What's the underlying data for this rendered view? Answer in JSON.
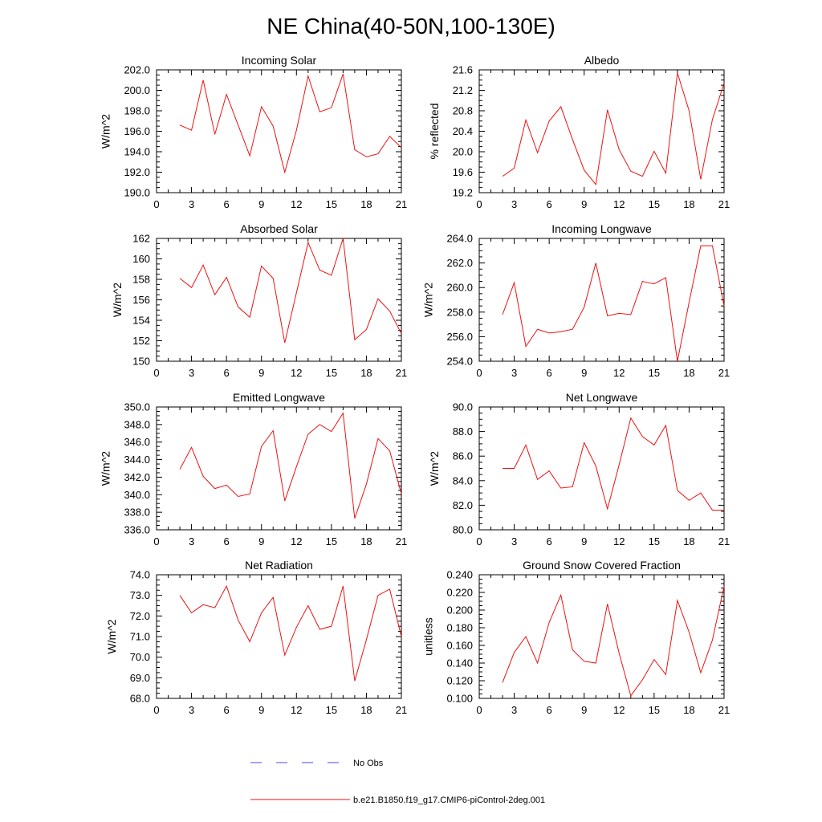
{
  "figure": {
    "title": "NE China(40-50N,100-130E)"
  },
  "legend": {
    "items": [
      {
        "label": "No Obs",
        "color": "#4a4adf",
        "dashed": true
      },
      {
        "label": "b.e21.B1850.f19_g17.CMIP6-piControl-2deg.001",
        "color": "#ee1111",
        "dashed": false
      }
    ]
  },
  "chart_data": [
    {
      "type": "line",
      "title": "Incoming Solar",
      "ylabel": "W/m^2",
      "xlim": [
        0,
        21
      ],
      "ylim": [
        190,
        202
      ],
      "xticks": [
        "0",
        "3",
        "6",
        "9",
        "12",
        "15",
        "18",
        "21"
      ],
      "yticks": [
        "190.0",
        "192.0",
        "194.0",
        "196.0",
        "198.0",
        "200.0",
        "202.0"
      ],
      "x": [
        2,
        3,
        4,
        5,
        6,
        7,
        8,
        9,
        10,
        11,
        12,
        13,
        14,
        15,
        16,
        17,
        18,
        19,
        20,
        21
      ],
      "series": [
        {
          "values": [
            196.6,
            196.1,
            201.0,
            195.7,
            199.6,
            196.6,
            193.6,
            198.4,
            196.5,
            192.0,
            196.1,
            201.4,
            197.9,
            198.3,
            201.6,
            194.2,
            193.5,
            193.8,
            195.5,
            194.4
          ]
        }
      ]
    },
    {
      "type": "line",
      "title": "Albedo",
      "ylabel": "% reflected",
      "xlim": [
        0,
        21
      ],
      "ylim": [
        19.2,
        21.6
      ],
      "xticks": [
        "0",
        "3",
        "6",
        "9",
        "12",
        "15",
        "18",
        "21"
      ],
      "yticks": [
        "19.2",
        "19.6",
        "20.0",
        "20.4",
        "20.8",
        "21.2",
        "21.6"
      ],
      "x": [
        2,
        3,
        4,
        5,
        6,
        7,
        8,
        9,
        10,
        11,
        12,
        13,
        14,
        15,
        16,
        17,
        18,
        19,
        20,
        21
      ],
      "series": [
        {
          "values": [
            19.52,
            19.68,
            20.62,
            19.98,
            20.6,
            20.88,
            20.24,
            19.64,
            19.36,
            20.82,
            20.04,
            19.62,
            19.52,
            20.01,
            19.58,
            21.54,
            20.8,
            19.46,
            20.63,
            21.34
          ]
        }
      ]
    },
    {
      "type": "line",
      "title": "Absorbed Solar",
      "ylabel": "W/m^2",
      "xlim": [
        0,
        21
      ],
      "ylim": [
        150,
        162
      ],
      "xticks": [
        "0",
        "3",
        "6",
        "9",
        "12",
        "15",
        "18",
        "21"
      ],
      "yticks": [
        "150",
        "152",
        "154",
        "156",
        "158",
        "160",
        "162"
      ],
      "x": [
        2,
        3,
        4,
        5,
        6,
        7,
        8,
        9,
        10,
        11,
        12,
        13,
        14,
        15,
        16,
        17,
        18,
        19,
        20,
        21
      ],
      "series": [
        {
          "values": [
            158.1,
            157.2,
            159.4,
            156.5,
            158.2,
            155.3,
            154.3,
            159.3,
            158.1,
            151.8,
            156.7,
            161.6,
            158.9,
            158.4,
            162.0,
            152.1,
            153.1,
            156.1,
            154.9,
            152.7
          ]
        }
      ]
    },
    {
      "type": "line",
      "title": "Incoming Longwave",
      "ylabel": "W/m^2",
      "xlim": [
        0,
        21
      ],
      "ylim": [
        254,
        264
      ],
      "xticks": [
        "0",
        "3",
        "6",
        "9",
        "12",
        "15",
        "18",
        "21"
      ],
      "yticks": [
        "254.0",
        "256.0",
        "258.0",
        "260.0",
        "262.0",
        "264.0"
      ],
      "x": [
        2,
        3,
        4,
        5,
        6,
        7,
        8,
        9,
        10,
        11,
        12,
        13,
        14,
        15,
        16,
        17,
        18,
        19,
        20,
        21
      ],
      "series": [
        {
          "values": [
            257.8,
            260.4,
            255.2,
            256.6,
            256.3,
            256.4,
            256.6,
            258.4,
            262.0,
            257.7,
            257.9,
            257.8,
            260.5,
            260.3,
            260.8,
            254.0,
            258.8,
            263.4,
            263.4,
            258.5
          ]
        }
      ]
    },
    {
      "type": "line",
      "title": "Emitted Longwave",
      "ylabel": "W/m^2",
      "xlim": [
        0,
        21
      ],
      "ylim": [
        336,
        350
      ],
      "xticks": [
        "0",
        "3",
        "6",
        "9",
        "12",
        "15",
        "18",
        "21"
      ],
      "yticks": [
        "336.0",
        "338.0",
        "340.0",
        "342.0",
        "344.0",
        "346.0",
        "348.0",
        "350.0"
      ],
      "x": [
        2,
        3,
        4,
        5,
        6,
        7,
        8,
        9,
        10,
        11,
        12,
        13,
        14,
        15,
        16,
        17,
        18,
        19,
        20,
        21
      ],
      "series": [
        {
          "values": [
            342.9,
            345.4,
            342.1,
            340.7,
            341.1,
            339.8,
            340.1,
            345.5,
            347.3,
            339.3,
            343.2,
            346.9,
            348.0,
            347.2,
            349.3,
            337.3,
            341.2,
            346.4,
            345.0,
            340.1
          ]
        }
      ]
    },
    {
      "type": "line",
      "title": "Net Longwave",
      "ylabel": "W/m^2",
      "xlim": [
        0,
        21
      ],
      "ylim": [
        80,
        90
      ],
      "xticks": [
        "0",
        "3",
        "6",
        "9",
        "12",
        "15",
        "18",
        "21"
      ],
      "yticks": [
        "80.0",
        "82.0",
        "84.0",
        "86.0",
        "88.0",
        "90.0"
      ],
      "x": [
        2,
        3,
        4,
        5,
        6,
        7,
        8,
        9,
        10,
        11,
        12,
        13,
        14,
        15,
        16,
        17,
        18,
        19,
        20,
        21
      ],
      "series": [
        {
          "values": [
            85.0,
            85.0,
            86.9,
            84.1,
            84.8,
            83.4,
            83.5,
            87.1,
            85.2,
            81.7,
            85.3,
            89.1,
            87.6,
            86.9,
            88.5,
            83.2,
            82.4,
            83.0,
            81.6,
            81.6
          ]
        }
      ]
    },
    {
      "type": "line",
      "title": "Net Radiation",
      "ylabel": "W/m^2",
      "xlim": [
        0,
        21
      ],
      "ylim": [
        68,
        74
      ],
      "xticks": [
        "0",
        "3",
        "6",
        "9",
        "12",
        "15",
        "18",
        "21"
      ],
      "yticks": [
        "68.0",
        "69.0",
        "70.0",
        "71.0",
        "72.0",
        "73.0",
        "74.0"
      ],
      "x": [
        2,
        3,
        4,
        5,
        6,
        7,
        8,
        9,
        10,
        11,
        12,
        13,
        14,
        15,
        16,
        17,
        18,
        19,
        20,
        21
      ],
      "series": [
        {
          "values": [
            73.0,
            72.15,
            72.55,
            72.4,
            73.45,
            71.8,
            70.75,
            72.15,
            72.9,
            70.1,
            71.45,
            72.5,
            71.35,
            71.5,
            73.45,
            68.85,
            70.85,
            73.0,
            73.3,
            71.0
          ]
        }
      ]
    },
    {
      "type": "line",
      "title": "Ground Snow Covered Fraction",
      "ylabel": "unitless",
      "xlim": [
        0,
        21
      ],
      "ylim": [
        0.1,
        0.24
      ],
      "xticks": [
        "0",
        "3",
        "6",
        "9",
        "12",
        "15",
        "18",
        "21"
      ],
      "yticks": [
        "0.100",
        "0.120",
        "0.140",
        "0.160",
        "0.180",
        "0.200",
        "0.220",
        "0.240"
      ],
      "x": [
        2,
        3,
        4,
        5,
        6,
        7,
        8,
        9,
        10,
        11,
        12,
        13,
        14,
        15,
        16,
        17,
        18,
        19,
        20,
        21
      ],
      "series": [
        {
          "values": [
            0.118,
            0.152,
            0.17,
            0.14,
            0.186,
            0.217,
            0.155,
            0.142,
            0.14,
            0.207,
            0.151,
            0.103,
            0.121,
            0.144,
            0.127,
            0.211,
            0.175,
            0.129,
            0.166,
            0.227
          ]
        }
      ]
    }
  ]
}
